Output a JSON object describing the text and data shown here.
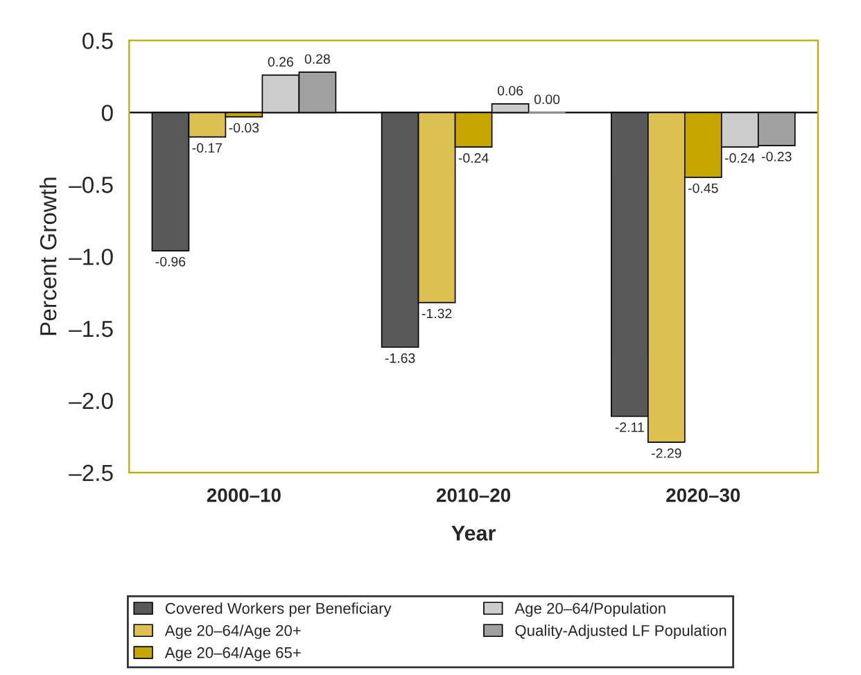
{
  "chart_data": {
    "type": "bar",
    "xlabel": "Year",
    "ylabel": "Percent Growth",
    "categories": [
      "2000–10",
      "2010–20",
      "2020–30"
    ],
    "series": [
      {
        "name": "Covered Workers per Beneficiary",
        "color": "#595959",
        "values": [
          -0.96,
          -1.63,
          -2.11
        ],
        "value_labels": [
          "-0.96",
          "-1.63",
          "-2.11"
        ]
      },
      {
        "name": "Age 20–64/Age 20+",
        "color": "#dcc050",
        "values": [
          -0.17,
          -1.32,
          -2.29
        ],
        "value_labels": [
          "-0.17",
          "-1.32",
          "-2.29"
        ]
      },
      {
        "name": "Age 20–64/Age 65+",
        "color": "#c8a600",
        "values": [
          -0.03,
          -0.24,
          -0.45
        ],
        "value_labels": [
          "-0.03",
          "-0.24",
          "-0.45"
        ]
      },
      {
        "name": "Age 20–64/Population",
        "color": "#cccccc",
        "values": [
          0.26,
          0.06,
          -0.24
        ],
        "value_labels": [
          "0.26",
          "0.06",
          "-0.24"
        ]
      },
      {
        "name": "Quality-Adjusted LF Population",
        "color": "#a0a0a0",
        "values": [
          0.28,
          0.0,
          -0.23
        ],
        "value_labels": [
          "0.28",
          "0.00",
          "-0.23"
        ]
      }
    ],
    "ylim": [
      -2.5,
      0.5
    ],
    "yticks": [
      {
        "value": 0.5,
        "label": "0.5"
      },
      {
        "value": 0,
        "label": "0"
      },
      {
        "value": -0.5,
        "label": "–0.5"
      },
      {
        "value": -1.0,
        "label": "–1.0"
      },
      {
        "value": -1.5,
        "label": "–1.5"
      },
      {
        "value": -2.0,
        "label": "–2.0"
      },
      {
        "value": -2.5,
        "label": "–2.5"
      }
    ],
    "ref_lines": [
      {
        "axis": "y",
        "value": 0,
        "color": "#000000"
      }
    ],
    "grid": false,
    "legend": "bottom"
  }
}
